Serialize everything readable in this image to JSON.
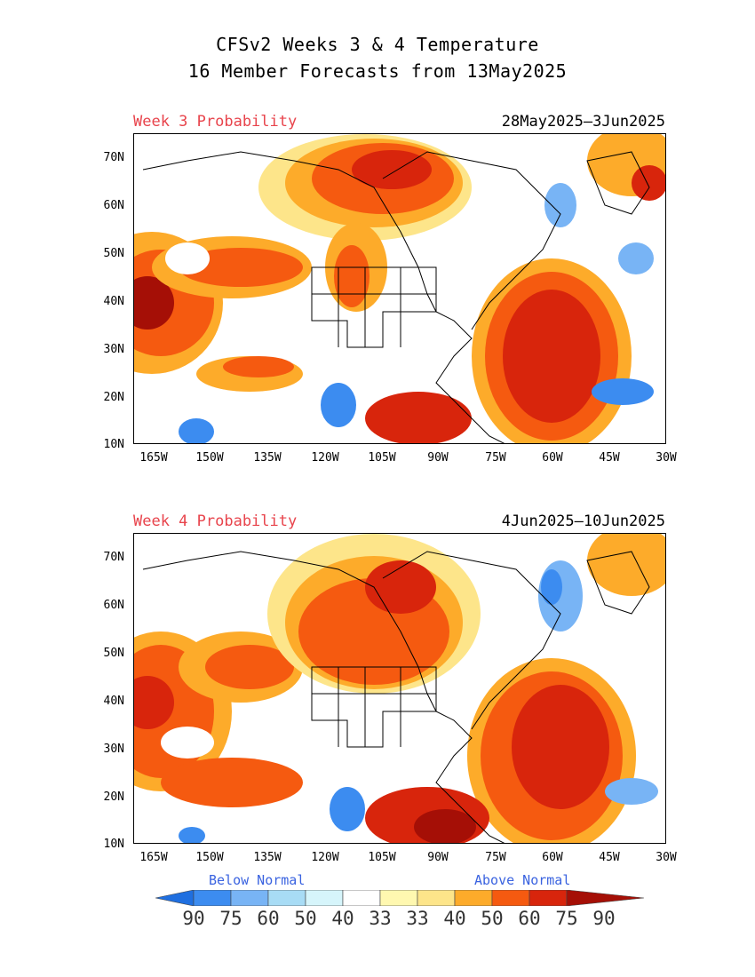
{
  "title_line1": "CFSv2 Weeks 3 & 4 Temperature",
  "title_line2": "16 Member Forecasts from 13May2025",
  "panels": [
    {
      "label": "Week 3 Probability",
      "dates": "28May2025—3Jun2025"
    },
    {
      "label": "Week 4 Probability",
      "dates": "4Jun2025—10Jun2025"
    }
  ],
  "lat_ticks": [
    "70N",
    "60N",
    "50N",
    "40N",
    "30N",
    "20N",
    "10N"
  ],
  "lon_ticks": [
    "165W",
    "150W",
    "135W",
    "120W",
    "105W",
    "90W",
    "75W",
    "60W",
    "45W",
    "30W"
  ],
  "legend": {
    "below_label": "Below Normal",
    "above_label": "Above Normal",
    "values": [
      "90",
      "75",
      "60",
      "50",
      "40",
      "33",
      "33",
      "40",
      "50",
      "60",
      "75",
      "90"
    ],
    "colors": [
      "#1f6fe0",
      "#3c8cf0",
      "#78b4f5",
      "#a8dcf5",
      "#d6f5fb",
      "#ffffff",
      "#fff8b0",
      "#fde58a",
      "#fdab2a",
      "#f55a10",
      "#d8250c",
      "#a50f06"
    ]
  }
}
